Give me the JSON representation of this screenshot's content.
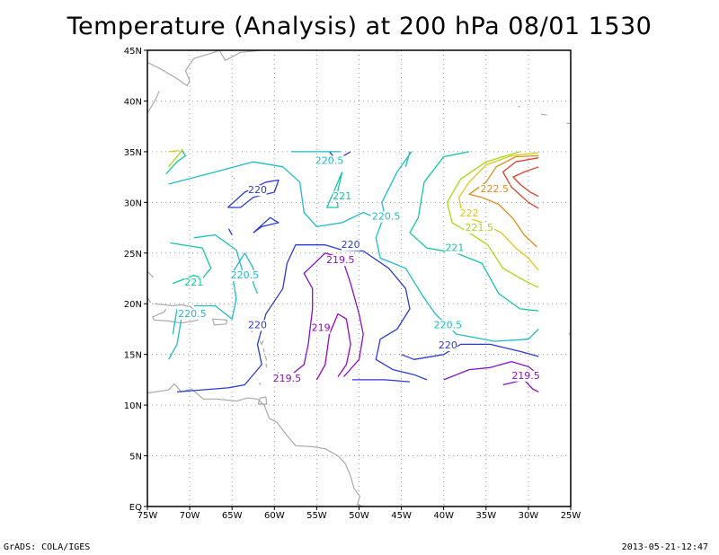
{
  "title": "Temperature (Analysis) at 200 hPa 08/01 1530",
  "footer": {
    "left": "GrADS: COLA/IGES",
    "right": "2013-05-21-12:47"
  },
  "map": {
    "lon_range": [
      -75,
      -25
    ],
    "lat_range": [
      0,
      45
    ],
    "x_ticks": [
      {
        "lon": -75,
        "label": "75W"
      },
      {
        "lon": -70,
        "label": "70W"
      },
      {
        "lon": -65,
        "label": "65W"
      },
      {
        "lon": -60,
        "label": "60W"
      },
      {
        "lon": -55,
        "label": "55W"
      },
      {
        "lon": -50,
        "label": "50W"
      },
      {
        "lon": -45,
        "label": "45W"
      },
      {
        "lon": -40,
        "label": "40W"
      },
      {
        "lon": -35,
        "label": "35W"
      },
      {
        "lon": -30,
        "label": "30W"
      },
      {
        "lon": -25,
        "label": "25W"
      }
    ],
    "y_ticks": [
      {
        "lat": 0,
        "label": "EQ"
      },
      {
        "lat": 5,
        "label": "5N"
      },
      {
        "lat": 10,
        "label": "10N"
      },
      {
        "lat": 15,
        "label": "15N"
      },
      {
        "lat": 20,
        "label": "20N"
      },
      {
        "lat": 25,
        "label": "25N"
      },
      {
        "lat": 30,
        "label": "30N"
      },
      {
        "lat": 35,
        "label": "35N"
      },
      {
        "lat": 40,
        "label": "40N"
      },
      {
        "lat": 45,
        "label": "45N"
      }
    ],
    "grid": true,
    "colors": {
      "219": "#a000c8",
      "219.5": "#8a10c8",
      "220": "#2a3cd8",
      "220.5": "#1cbcc8",
      "221": "#10c8a0",
      "221.5": "#a0dc10",
      "222": "#dcc814",
      "222.5": "#e08c18",
      "223": "#e04030",
      "coast": "#aaaaaa"
    },
    "contour_labels": [
      {
        "text": "220.5",
        "lon": -53.5,
        "lat": 33.8,
        "level": "220.5"
      },
      {
        "text": "220",
        "lon": -62,
        "lat": 30.9,
        "level": "220"
      },
      {
        "text": "221",
        "lon": -52,
        "lat": 30.3,
        "level": "221"
      },
      {
        "text": "220.5",
        "lon": -46.8,
        "lat": 28.3,
        "level": "220.5"
      },
      {
        "text": "222.5",
        "lon": -34,
        "lat": 31.0,
        "level": "222.5"
      },
      {
        "text": "222",
        "lon": -37,
        "lat": 28.6,
        "level": "222"
      },
      {
        "text": "221.5",
        "lon": -35.8,
        "lat": 27.2,
        "level": "221.5"
      },
      {
        "text": "220",
        "lon": -51,
        "lat": 25.5,
        "level": "220"
      },
      {
        "text": "219.5",
        "lon": -52.2,
        "lat": 24.0,
        "level": "219.5"
      },
      {
        "text": "221",
        "lon": -38.7,
        "lat": 25.2,
        "level": "221"
      },
      {
        "text": "220.5",
        "lon": -63.5,
        "lat": 22.5,
        "level": "220.5"
      },
      {
        "text": "221",
        "lon": -69.5,
        "lat": 21.8,
        "level": "221"
      },
      {
        "text": "220.5",
        "lon": -69.7,
        "lat": 18.7,
        "level": "220.5"
      },
      {
        "text": "220",
        "lon": -62.0,
        "lat": 17.6,
        "level": "220"
      },
      {
        "text": "219",
        "lon": -54.5,
        "lat": 17.3,
        "level": "219"
      },
      {
        "text": "220.5",
        "lon": -39.5,
        "lat": 17.6,
        "level": "220.5"
      },
      {
        "text": "220",
        "lon": -39.5,
        "lat": 15.6,
        "level": "220"
      },
      {
        "text": "219.5",
        "lon": -58.5,
        "lat": 12.3,
        "level": "219.5"
      },
      {
        "text": "219.5",
        "lon": -30.3,
        "lat": 12.6,
        "level": "219.5"
      }
    ]
  }
}
